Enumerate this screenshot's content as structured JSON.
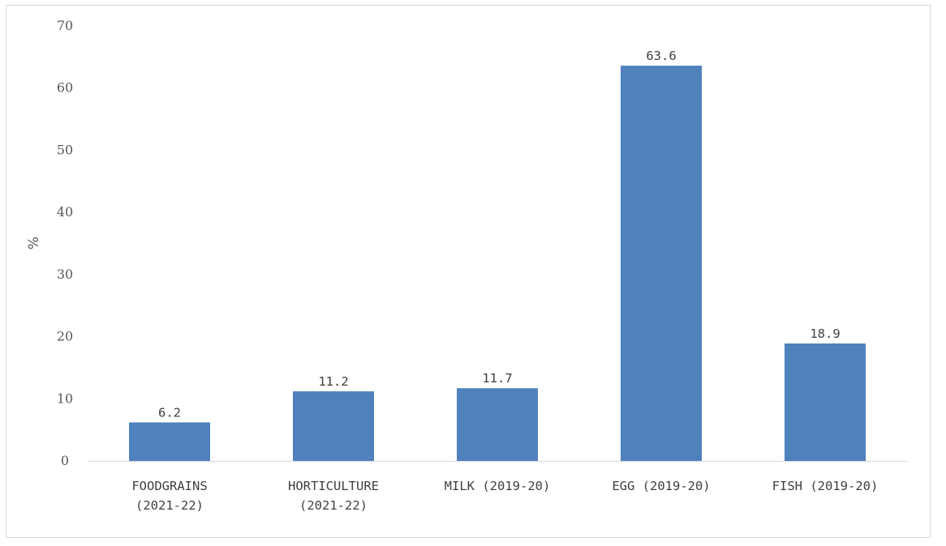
{
  "chart_data": {
    "type": "bar",
    "title": "",
    "xlabel": "",
    "ylabel": "%",
    "categories": [
      [
        "FOODGRAINS",
        "(2021-22)"
      ],
      [
        "HORTICULTURE",
        "(2021-22)"
      ],
      [
        "MILK (2019-20)"
      ],
      [
        "EGG (2019-20)"
      ],
      [
        "FISH (2019-20)"
      ]
    ],
    "values": [
      6.2,
      11.2,
      11.7,
      63.6,
      18.9
    ],
    "value_labels": [
      "6.2",
      "11.2",
      "11.7",
      "63.6",
      "18.9"
    ],
    "ylim": [
      0,
      70
    ],
    "yticks": [
      0,
      10,
      20,
      30,
      40,
      50,
      60,
      70
    ],
    "grid": false,
    "legend": "none",
    "bar_color": "#4f81bd"
  }
}
